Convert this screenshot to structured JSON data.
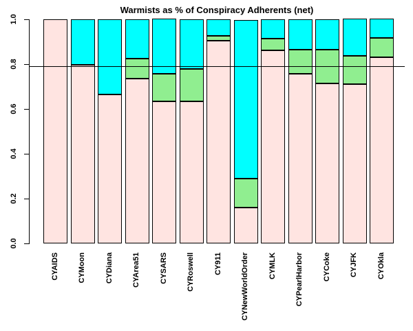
{
  "title": "Warmists as % of Conspiracy Adherents (net)",
  "colors": {
    "segment_pink": "#FFE4E1",
    "segment_green": "#90EE90",
    "segment_cyan": "#00FFFF",
    "border": "#000000",
    "background": "#FFFFFF"
  },
  "y_axis": {
    "tick_labels": [
      "0.0",
      "0.2",
      "0.4",
      "0.6",
      "0.8",
      "1.0"
    ],
    "tick_values": [
      0,
      0.2,
      0.4,
      0.6,
      0.8,
      1.0
    ]
  },
  "chart_data": {
    "type": "bar",
    "stacked": true,
    "title": "Warmists as % of Conspiracy Adherents (net)",
    "xlabel": "",
    "ylabel": "",
    "ylim": [
      0,
      1
    ],
    "grid": false,
    "legend": "none",
    "reference_line_y": 0.79,
    "categories": [
      "CYAIDS",
      "CYMoon",
      "CYDiana",
      "CYArea51",
      "CYSARS",
      "CYRoswell",
      "CY911",
      "CYNewWorldOrder",
      "CYMLK",
      "CYPearlHarbor",
      "CYCoke",
      "CYJFK",
      "CYOkla"
    ],
    "series": [
      {
        "name": "bottom-pink",
        "color": "#FFE4E1",
        "values": [
          1.0,
          0.797,
          0.665,
          0.735,
          0.633,
          0.635,
          0.906,
          0.161,
          0.862,
          0.757,
          0.715,
          0.71,
          0.83
        ]
      },
      {
        "name": "middle-green",
        "color": "#90EE90",
        "values": [
          0,
          0,
          0,
          0.09,
          0.122,
          0.145,
          0.021,
          0.13,
          0.051,
          0.109,
          0.15,
          0.125,
          0.085
        ]
      },
      {
        "name": "top-cyan",
        "color": "#00FFFF",
        "values": [
          0,
          0.203,
          0.335,
          0.175,
          0.245,
          0.22,
          0.073,
          0.709,
          0.087,
          0.134,
          0.135,
          0.165,
          0.085
        ]
      }
    ]
  }
}
